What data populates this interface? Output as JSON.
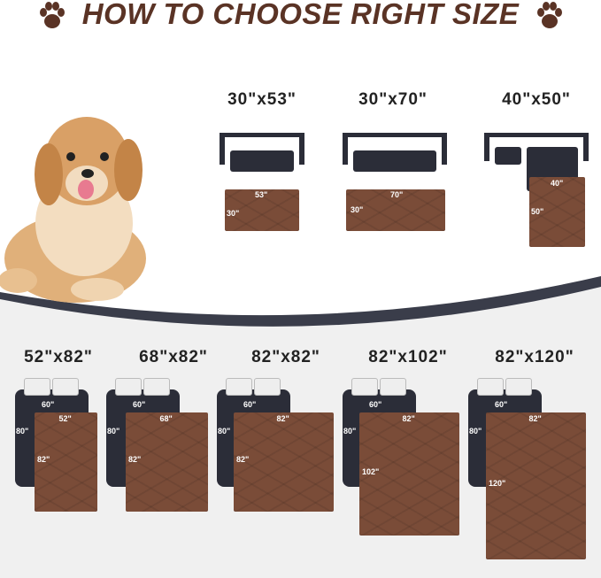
{
  "title": "HOW TO CHOOSE RIGHT SIZE",
  "icons": [
    "paw-icon",
    "dog-photo",
    "sofa-icon",
    "bed-icon"
  ],
  "colors": {
    "title": "#5a3325",
    "pad": "#7a4c38",
    "furniture": "#2b2d38",
    "bottom_bg": "#f0f0f0"
  },
  "sofa_sizes": [
    {
      "label": "30\"x53\"",
      "width": "53\"",
      "height": "30\""
    },
    {
      "label": "30\"x70\"",
      "width": "70\"",
      "height": "30\""
    },
    {
      "label": "40\"x50\"",
      "width": "40\"",
      "height": "50\""
    }
  ],
  "bed_sizes": [
    {
      "label": "52\"x82\"",
      "bed_w": "60\"",
      "bed_h": "80\"",
      "width": "52\"",
      "height": "82\""
    },
    {
      "label": "68\"x82\"",
      "bed_w": "60\"",
      "bed_h": "80\"",
      "width": "68\"",
      "height": "82\""
    },
    {
      "label": "82\"x82\"",
      "bed_w": "60\"",
      "bed_h": "80\"",
      "width": "82\"",
      "height": "82\""
    },
    {
      "label": "82\"x102\"",
      "bed_w": "60\"",
      "bed_h": "80\"",
      "width": "82\"",
      "height": "102\""
    },
    {
      "label": "82\"x120\"",
      "bed_w": "60\"",
      "bed_h": "80\"",
      "width": "82\"",
      "height": "120\""
    }
  ]
}
